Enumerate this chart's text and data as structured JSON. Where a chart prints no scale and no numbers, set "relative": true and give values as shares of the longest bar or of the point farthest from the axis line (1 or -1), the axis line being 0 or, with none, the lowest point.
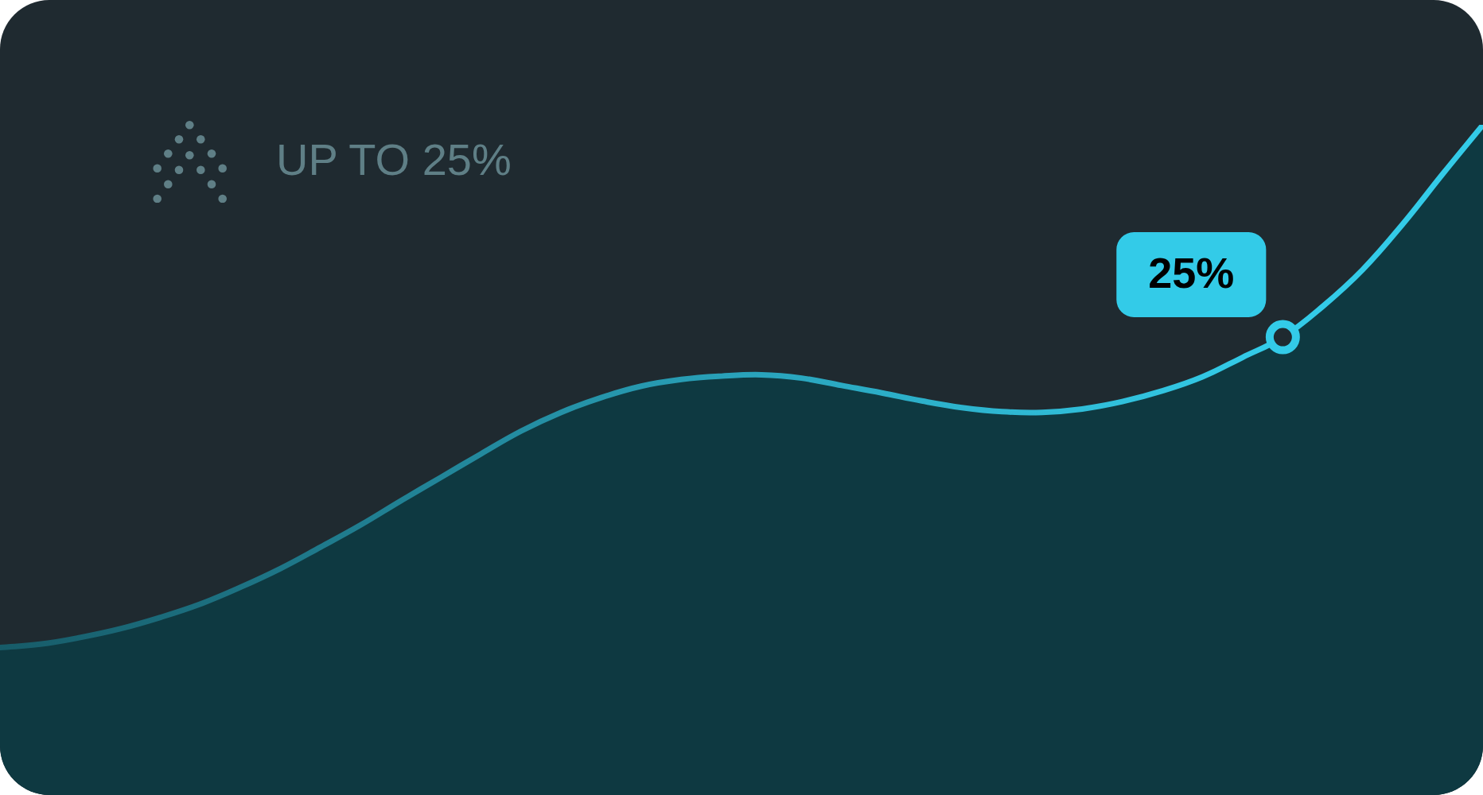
{
  "chart_data": {
    "type": "area",
    "title": "UP TO 25%",
    "relative": true,
    "categories": [
      null,
      null,
      null,
      null,
      null,
      null,
      null,
      null,
      null,
      null,
      null,
      null,
      null,
      null,
      null,
      null,
      null,
      null,
      null,
      null,
      null,
      null,
      null,
      null,
      null,
      null,
      null,
      null,
      null,
      null,
      null,
      null,
      null,
      null,
      null,
      null,
      null,
      null
    ],
    "series": [
      {
        "color": "#33cbe8",
        "values": [
          0.22,
          0.225,
          0.235,
          0.248,
          0.265,
          0.285,
          0.31,
          0.338,
          0.37,
          0.403,
          0.439,
          0.474,
          0.509,
          0.543,
          0.571,
          0.593,
          0.61,
          0.62,
          0.625,
          0.627,
          0.622,
          0.611,
          0.6,
          0.588,
          0.578,
          0.572,
          0.571,
          0.576,
          0.587,
          0.603,
          0.624,
          0.653,
          0.683,
          0.729,
          0.784,
          0.852,
          0.927,
          1
        ]
      }
    ],
    "annotations": [
      "25%"
    ]
  }
}
